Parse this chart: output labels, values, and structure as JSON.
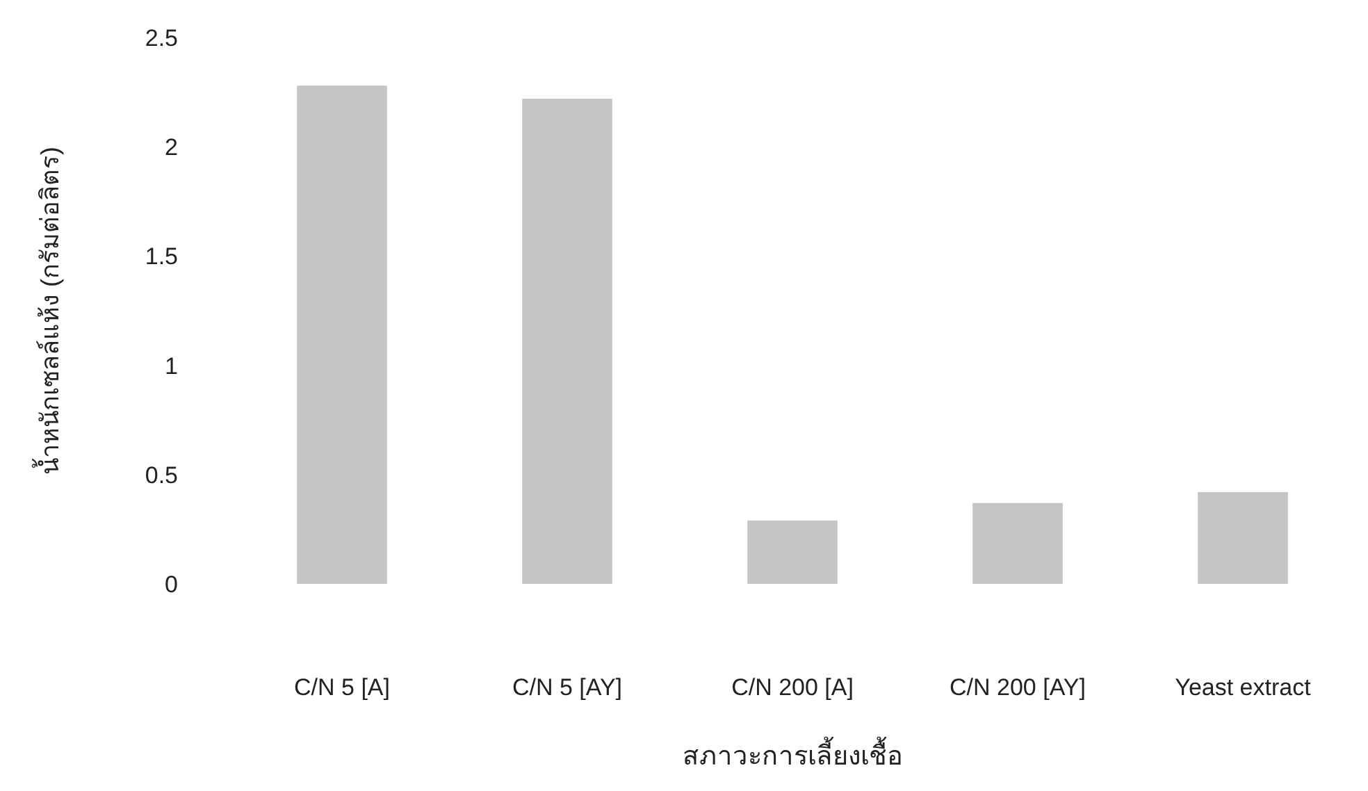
{
  "chart_data": {
    "type": "bar",
    "xlabel": "สภาวะการเลี้ยงเชื้อ",
    "ylabel": "น้ำหนักเซลล์แห้ง (กรัมต่อลิตร)",
    "categories": [
      "C/N 5 [A]",
      "C/N 5 [AY]",
      "C/N 200 [A]",
      "C/N 200 [AY]",
      "Yeast extract"
    ],
    "values": [
      2.28,
      2.22,
      0.29,
      0.37,
      0.42
    ],
    "color": "#c4c4c4",
    "ylim": [
      0,
      2.5
    ],
    "yticks": [
      0,
      0.5,
      1,
      1.5,
      2,
      2.5
    ]
  }
}
